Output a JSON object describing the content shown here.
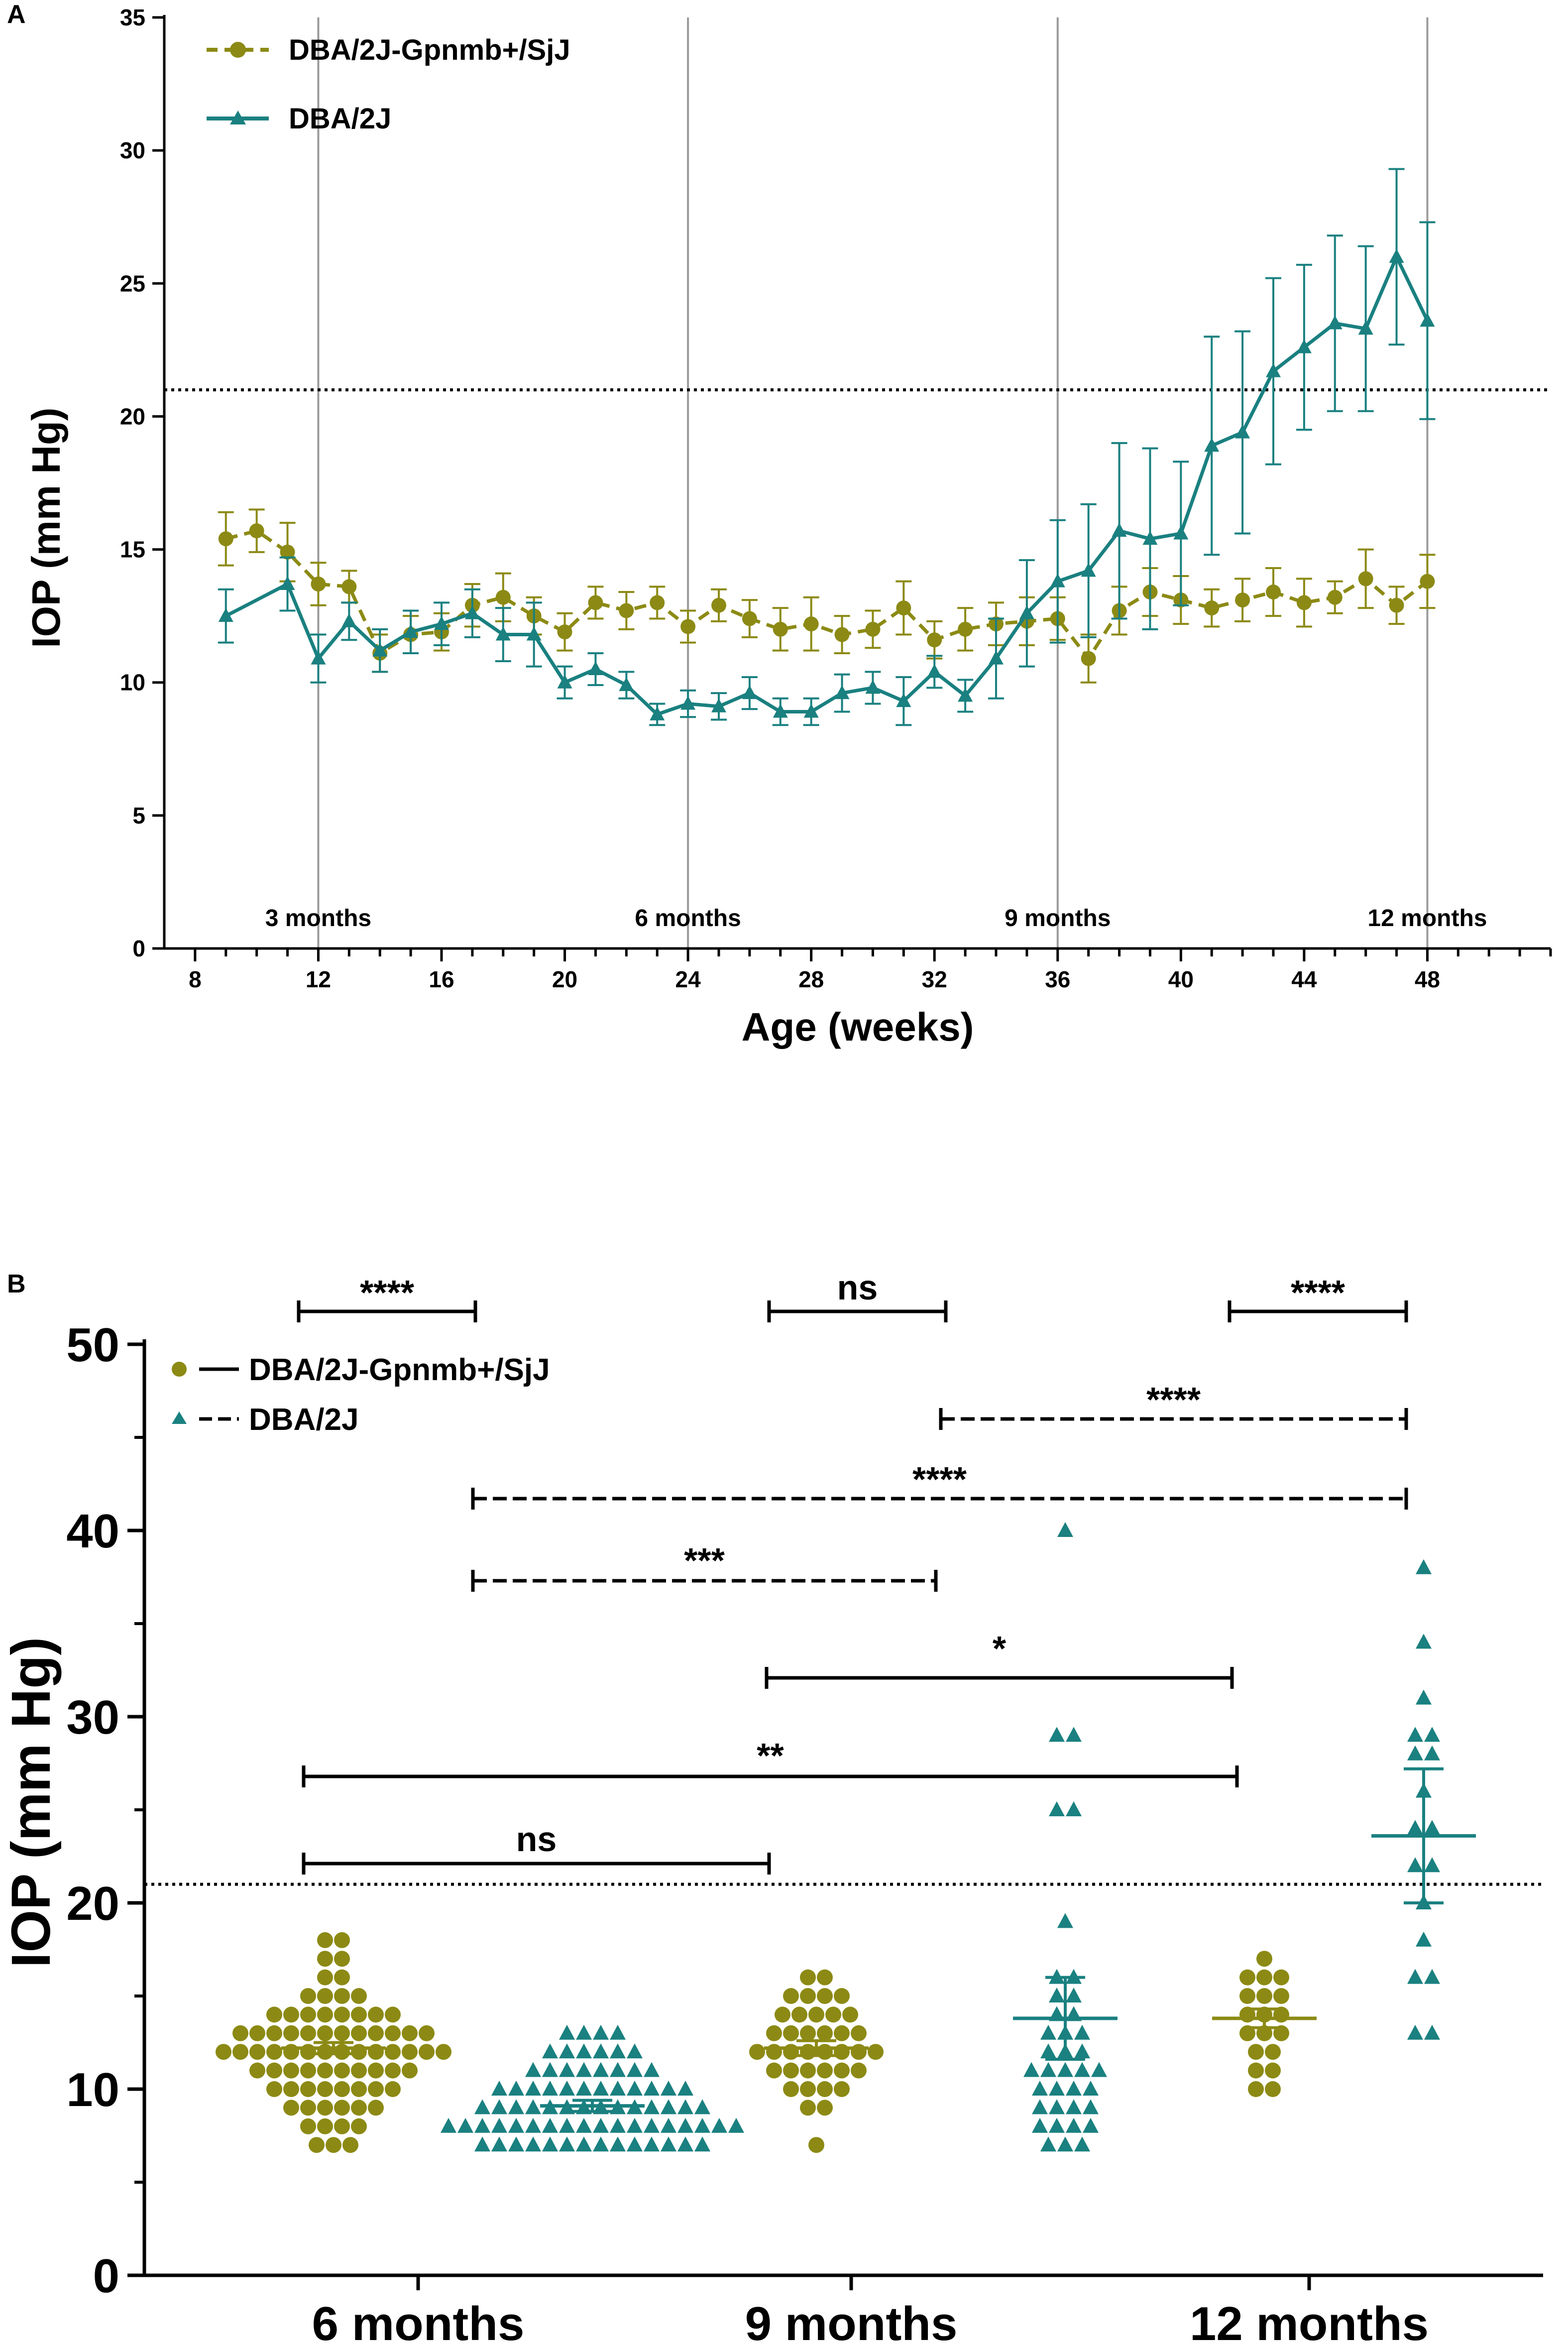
{
  "colors": {
    "gpnmb": "#8C8A14",
    "dba": "#1A8080",
    "axis": "#000000",
    "vline": "#9A9A9A"
  },
  "chart_data": [
    {
      "panel": "A",
      "type": "line",
      "xlabel": "Age (weeks)",
      "ylabel": "IOP (mm Hg)",
      "xlim": [
        7,
        52
      ],
      "ylim": [
        0,
        35
      ],
      "xticks": [
        8,
        12,
        16,
        20,
        24,
        28,
        32,
        36,
        40,
        44,
        48
      ],
      "yticks": [
        0,
        5,
        10,
        15,
        20,
        25,
        30,
        35
      ],
      "threshold": 21,
      "legend": [
        "DBA/2J-Gpnmb+/SjJ",
        "DBA/2J"
      ],
      "legend_position": "top-left",
      "month_markers": [
        {
          "x": 12,
          "label": "3 months"
        },
        {
          "x": 24,
          "label": "6 months"
        },
        {
          "x": 36,
          "label": "9 months"
        },
        {
          "x": 48,
          "label": "12 months"
        }
      ],
      "series": [
        {
          "name": "DBA/2J-Gpnmb+/SjJ",
          "marker": "circle",
          "line": "dashed",
          "x": [
            9,
            10,
            11,
            12,
            13,
            14,
            15,
            16,
            17,
            18,
            19,
            20,
            21,
            22,
            23,
            24,
            25,
            26,
            27,
            28,
            29,
            30,
            31,
            32,
            33,
            34,
            35,
            36,
            37,
            38,
            39,
            40,
            41,
            42,
            43,
            44,
            45,
            46,
            47,
            48
          ],
          "values": [
            15.4,
            15.7,
            14.9,
            13.7,
            13.6,
            11.1,
            11.8,
            11.9,
            12.9,
            13.2,
            12.5,
            11.9,
            13.0,
            12.7,
            13.0,
            12.1,
            12.9,
            12.4,
            12.0,
            12.2,
            11.8,
            12.0,
            12.8,
            11.6,
            12.0,
            12.2,
            12.3,
            12.4,
            10.9,
            12.7,
            13.4,
            13.1,
            12.8,
            13.1,
            13.4,
            13.0,
            13.2,
            13.9,
            12.9,
            13.8
          ],
          "errors": [
            1.0,
            0.8,
            1.1,
            0.8,
            0.6,
            0.7,
            0.7,
            0.7,
            0.8,
            0.9,
            0.7,
            0.7,
            0.6,
            0.7,
            0.6,
            0.6,
            0.6,
            0.7,
            0.8,
            1.0,
            0.7,
            0.7,
            1.0,
            0.7,
            0.8,
            0.8,
            0.9,
            0.8,
            0.9,
            0.9,
            0.9,
            0.9,
            0.7,
            0.8,
            0.9,
            0.9,
            0.6,
            1.1,
            0.7,
            1.0
          ]
        },
        {
          "name": "DBA/2J",
          "marker": "triangle",
          "line": "solid",
          "x": [
            9,
            11,
            12,
            13,
            14,
            15,
            16,
            17,
            18,
            19,
            20,
            21,
            22,
            23,
            24,
            25,
            26,
            27,
            28,
            29,
            30,
            31,
            32,
            33,
            34,
            35,
            36,
            37,
            38,
            39,
            40,
            41,
            42,
            43,
            44,
            45,
            46,
            47,
            48
          ],
          "values": [
            12.5,
            13.7,
            10.9,
            12.3,
            11.2,
            11.9,
            12.2,
            12.6,
            11.8,
            11.8,
            10.0,
            10.5,
            9.9,
            8.8,
            9.2,
            9.1,
            9.6,
            8.9,
            8.9,
            9.6,
            9.8,
            9.3,
            10.4,
            9.5,
            10.9,
            12.6,
            13.8,
            14.2,
            15.7,
            15.4,
            15.6,
            18.9,
            19.4,
            21.7,
            22.6,
            23.5,
            23.3,
            26.0,
            23.6
          ],
          "errors": [
            1.0,
            1.0,
            0.9,
            0.7,
            0.8,
            0.8,
            0.8,
            0.9,
            1.0,
            1.2,
            0.6,
            0.6,
            0.5,
            0.4,
            0.5,
            0.5,
            0.6,
            0.5,
            0.5,
            0.7,
            0.6,
            0.9,
            0.6,
            0.6,
            1.5,
            2.0,
            2.3,
            2.5,
            3.3,
            3.4,
            2.7,
            4.1,
            3.8,
            3.5,
            3.1,
            3.3,
            3.1,
            3.3,
            3.7
          ]
        }
      ]
    },
    {
      "panel": "B",
      "type": "scatter",
      "ylabel": "IOP (mm Hg)",
      "ylim": [
        0,
        50
      ],
      "yticks": [
        0,
        10,
        20,
        30,
        40,
        50
      ],
      "threshold": 21,
      "categories": [
        "6 months",
        "9 months",
        "12 months"
      ],
      "legend": [
        "DBA/2J-Gpnmb+/SjJ",
        "DBA/2J"
      ],
      "legend_position": "top-left",
      "groups": [
        {
          "category": "6 months",
          "series": "DBA/2J-Gpnmb+/SjJ",
          "marker": "circle",
          "mean": 12.2,
          "error": 0.3,
          "counts": [
            [
              7,
              3
            ],
            [
              8,
              4
            ],
            [
              9,
              6
            ],
            [
              10,
              8
            ],
            [
              11,
              10
            ],
            [
              12,
              14
            ],
            [
              13,
              12
            ],
            [
              14,
              8
            ],
            [
              15,
              4
            ],
            [
              16,
              2
            ],
            [
              17,
              2
            ],
            [
              18,
              2
            ]
          ]
        },
        {
          "category": "6 months",
          "series": "DBA/2J",
          "marker": "triangle",
          "mean": 9.1,
          "error": 0.3,
          "counts": [
            [
              7,
              14
            ],
            [
              8,
              18
            ],
            [
              9,
              14
            ],
            [
              10,
              12
            ],
            [
              11,
              8
            ],
            [
              12,
              6
            ],
            [
              13,
              4
            ]
          ]
        },
        {
          "category": "9 months",
          "series": "DBA/2J-Gpnmb+/SjJ",
          "marker": "circle",
          "mean": 12.2,
          "error": 0.4,
          "counts": [
            [
              7,
              1
            ],
            [
              9,
              2
            ],
            [
              10,
              4
            ],
            [
              11,
              6
            ],
            [
              12,
              8
            ],
            [
              13,
              6
            ],
            [
              14,
              5
            ],
            [
              15,
              4
            ],
            [
              16,
              2
            ]
          ]
        },
        {
          "category": "9 months",
          "series": "DBA/2J",
          "marker": "triangle",
          "mean": 13.8,
          "error": 2.2,
          "counts": [
            [
              7,
              3
            ],
            [
              8,
              4
            ],
            [
              9,
              4
            ],
            [
              10,
              4
            ],
            [
              11,
              5
            ],
            [
              12,
              3
            ],
            [
              13,
              3
            ],
            [
              14,
              2
            ],
            [
              15,
              2
            ],
            [
              16,
              2
            ],
            [
              19,
              1
            ],
            [
              25,
              2
            ],
            [
              29,
              2
            ],
            [
              40,
              1
            ]
          ]
        },
        {
          "category": "12 months",
          "series": "DBA/2J-Gpnmb+/SjJ",
          "marker": "circle",
          "mean": 13.8,
          "error": 0.5,
          "counts": [
            [
              10,
              2
            ],
            [
              11,
              2
            ],
            [
              12,
              2
            ],
            [
              13,
              3
            ],
            [
              14,
              3
            ],
            [
              15,
              3
            ],
            [
              16,
              3
            ],
            [
              17,
              1
            ]
          ]
        },
        {
          "category": "12 months",
          "series": "DBA/2J",
          "marker": "triangle",
          "mean": 23.6,
          "error": 3.6,
          "counts": [
            [
              13,
              2
            ],
            [
              16,
              2
            ],
            [
              18,
              1
            ],
            [
              20,
              1
            ],
            [
              22,
              2
            ],
            [
              24,
              2
            ],
            [
              26,
              1
            ],
            [
              28,
              2
            ],
            [
              29,
              2
            ],
            [
              31,
              1
            ],
            [
              34,
              1
            ],
            [
              38,
              1
            ]
          ]
        }
      ],
      "comparisons": [
        {
          "label": "****",
          "style": "solid",
          "from": "6 months / DBA/2J-Gpnmb+/SjJ",
          "to": "6 months / DBA/2J"
        },
        {
          "label": "ns",
          "style": "solid",
          "from": "9 months / DBA/2J-Gpnmb+/SjJ",
          "to": "9 months / DBA/2J"
        },
        {
          "label": "****",
          "style": "solid",
          "from": "12 months / DBA/2J-Gpnmb+/SjJ",
          "to": "12 months / DBA/2J"
        },
        {
          "label": "****",
          "style": "dashed",
          "from": "9 months / DBA/2J",
          "to": "12 months / DBA/2J"
        },
        {
          "label": "****",
          "style": "dashed",
          "from": "6 months / DBA/2J",
          "to": "12 months / DBA/2J"
        },
        {
          "label": "***",
          "style": "dashed",
          "from": "6 months / DBA/2J",
          "to": "9 months / DBA/2J"
        },
        {
          "label": "*",
          "style": "solid",
          "from": "9 months / DBA/2J-Gpnmb+/SjJ",
          "to": "12 months / DBA/2J-Gpnmb+/SjJ"
        },
        {
          "label": "**",
          "style": "solid",
          "from": "6 months / DBA/2J-Gpnmb+/SjJ",
          "to": "12 months / DBA/2J-Gpnmb+/SjJ"
        },
        {
          "label": "ns",
          "style": "solid",
          "from": "6 months / DBA/2J-Gpnmb+/SjJ",
          "to": "9 months / DBA/2J-Gpnmb+/SjJ"
        }
      ]
    }
  ]
}
